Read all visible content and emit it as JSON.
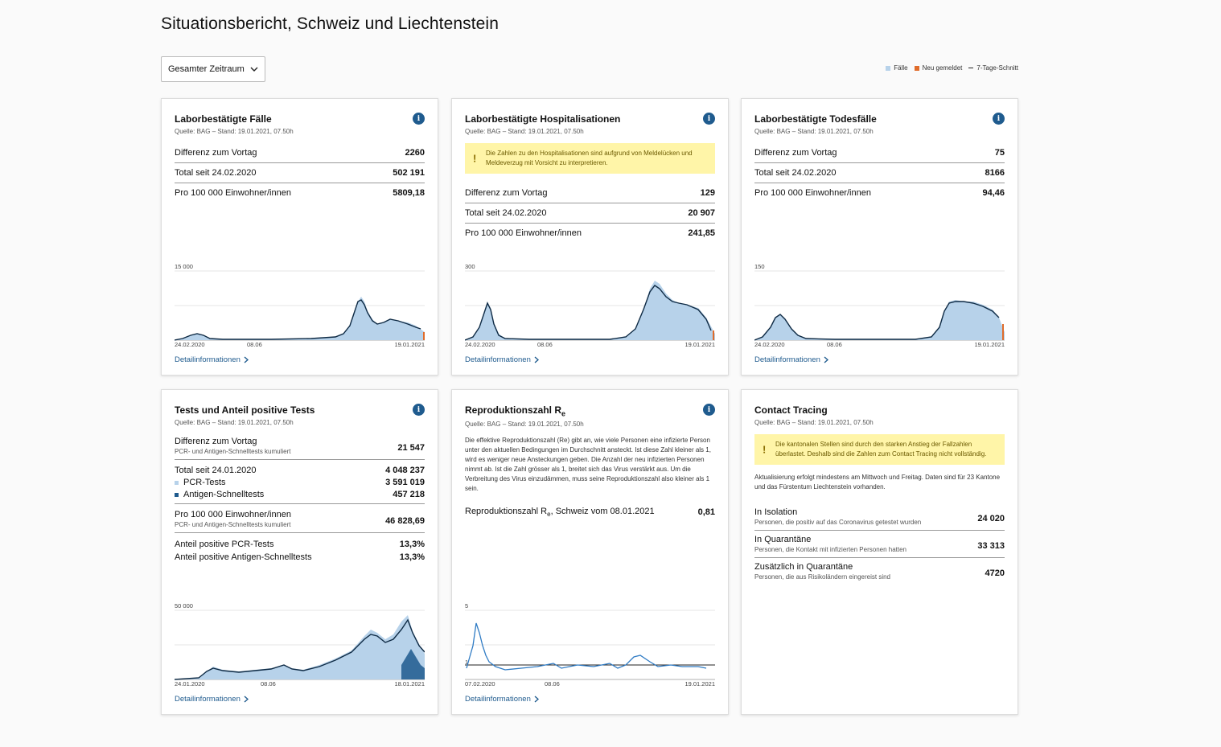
{
  "title": "Situationsbericht, Schweiz und Liechtenstein",
  "period_select": "Gesamter Zeitraum",
  "legend": {
    "cases": "Fälle",
    "new": "Neu gemeldet",
    "avg": "7-Tage-Schnitt",
    "cases_color": "#b7d2ea",
    "new_color": "#e06c2b"
  },
  "source": "Quelle: BAG – Stand: 19.01.2021, 07.50h",
  "detail_link": "Detailinformationen",
  "cards": {
    "cases": {
      "title": "Laborbestätigte Fälle",
      "rows": [
        {
          "label": "Differenz zum Vortag",
          "value": "2260"
        },
        {
          "label": "Total seit 24.02.2020",
          "value": "502 191"
        },
        {
          "label": "Pro 100 000 Einwohner/innen",
          "value": "5809,18"
        }
      ],
      "ymax": "15 000",
      "x": [
        "24.02.2020",
        "08.06",
        "19.01.2021"
      ]
    },
    "hosp": {
      "title": "Laborbestätigte Hospitalisationen",
      "note": "Die Zahlen zu den Hospitalisationen sind aufgrund von Meldelücken und Meldeverzug mit Vorsicht zu interpretieren.",
      "rows": [
        {
          "label": "Differenz zum Vortag",
          "value": "129"
        },
        {
          "label": "Total seit 24.02.2020",
          "value": "20 907"
        },
        {
          "label": "Pro 100 000 Einwohner/innen",
          "value": "241,85"
        }
      ],
      "ymax": "300",
      "x": [
        "24.02.2020",
        "08.06",
        "19.01.2021"
      ]
    },
    "deaths": {
      "title": "Laborbestätigte Todesfälle",
      "rows": [
        {
          "label": "Differenz zum Vortag",
          "value": "75"
        },
        {
          "label": "Total seit 24.02.2020",
          "value": "8166"
        },
        {
          "label": "Pro 100 000 Einwohner/innen",
          "value": "94,46"
        }
      ],
      "ymax": "150",
      "x": [
        "24.02.2020",
        "08.06",
        "19.01.2021"
      ]
    },
    "tests": {
      "title": "Tests und Anteil positive Tests",
      "diff_label": "Differenz zum Vortag",
      "diff_sub": "PCR- und Antigen-Schnelltests kumuliert",
      "diff_value": "21 547",
      "total_label": "Total seit 24.01.2020",
      "total_value": "4 048 237",
      "pcr_label": "PCR-Tests",
      "pcr_value": "3 591 019",
      "ag_label": "Antigen-Schnelltests",
      "ag_value": "457 218",
      "per_label": "Pro 100 000 Einwohner/innen",
      "per_sub": "PCR- und Antigen-Schnelltests kumuliert",
      "per_value": "46 828,69",
      "pos_pcr_label": "Anteil positive PCR-Tests",
      "pos_pcr_value": "13,3%",
      "pos_ag_label": "Anteil positive Antigen-Schnelltests",
      "pos_ag_value": "13,3%",
      "ymax": "50 000",
      "x": [
        "24.01.2020",
        "08.06",
        "18.01.2021"
      ]
    },
    "re": {
      "title_main": "Reproduktionszahl R",
      "title_sub": "e",
      "text": "Die effektive Reproduktionszahl (Re) gibt an, wie viele Personen eine infizierte Person unter den aktuellen Bedingungen im Durchschnitt ansteckt. Ist diese Zahl kleiner als 1, wird es weniger neue Ansteckungen geben. Die Anzahl der neu infizierten Personen nimmt ab. Ist die Zahl grösser als 1, breitet sich das Virus verstärkt aus. Um die Verbreitung des Virus einzudämmen, muss seine Reproduktionszahl also kleiner als 1 sein.",
      "row_label": "Reproduktionszahl R",
      "row_label_sub": "e",
      "row_label_rest": ", Schweiz vom 08.01.2021",
      "row_value": "0,81",
      "ymax": "5",
      "yref": "1",
      "x": [
        "07.02.2020",
        "08.06",
        "19.01.2021"
      ]
    },
    "tracing": {
      "title": "Contact Tracing",
      "note": "Die kantonalen Stellen sind durch den starken Anstieg der Fallzahlen überlastet. Deshalb sind die Zahlen zum Contact Tracing nicht vollständig.",
      "text": "Aktualisierung erfolgt mindestens am Mittwoch und Freitag. Daten sind für 23 Kantone und das Fürstentum Liechtenstein vorhanden.",
      "items": [
        {
          "label": "In Isolation",
          "sub": "Personen, die positiv auf das Coronavirus getestet wurden",
          "value": "24 020"
        },
        {
          "label": "In Quarantäne",
          "sub": "Personen, die Kontakt mit infizierten Personen hatten",
          "value": "33 313"
        },
        {
          "label": "Zusätzlich in Quarantäne",
          "sub": "Personen, die aus Risikoländern eingereist sind",
          "value": "4720"
        }
      ]
    }
  }
}
